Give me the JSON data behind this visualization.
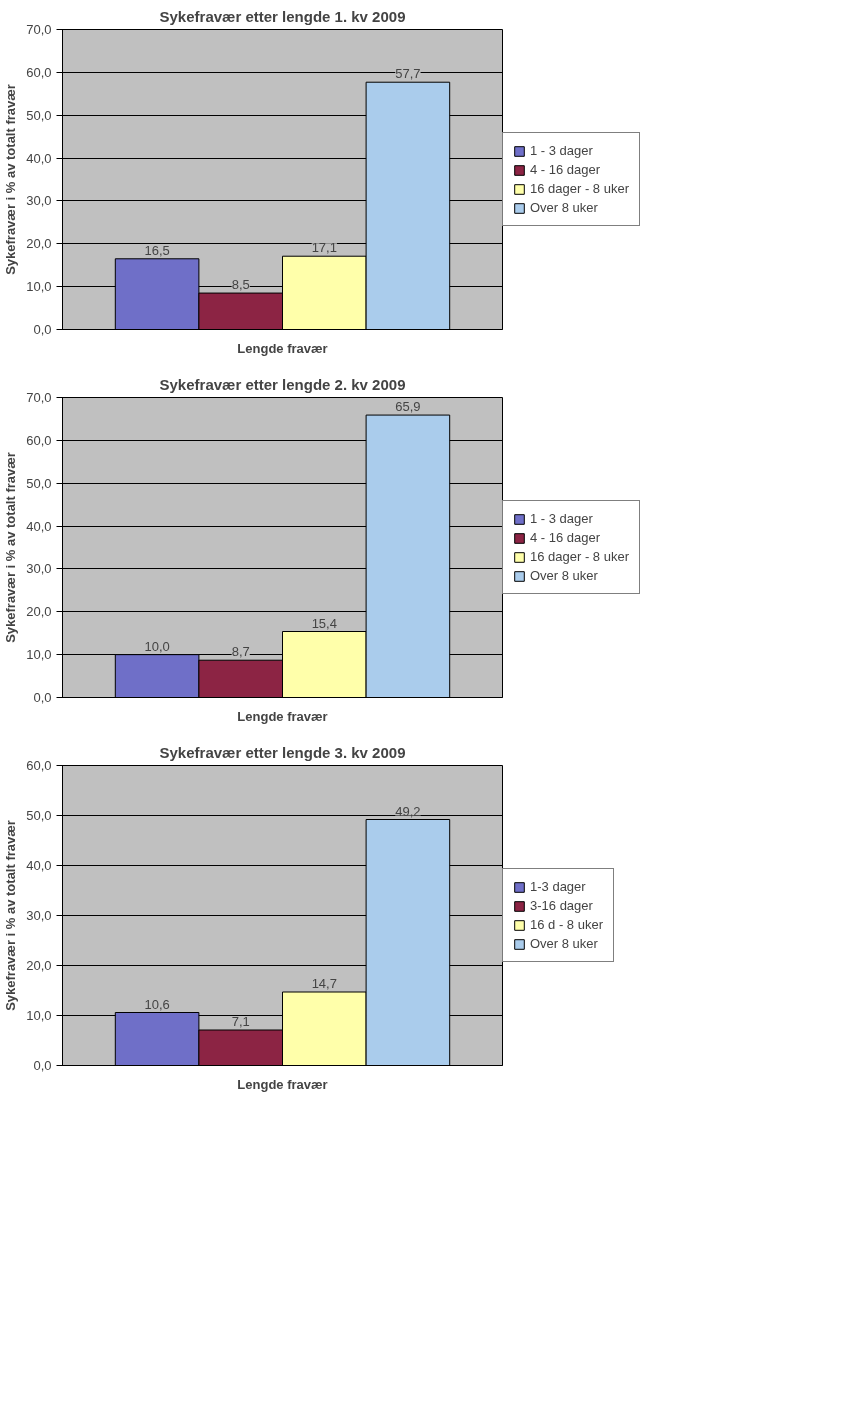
{
  "chart_data": [
    {
      "type": "bar",
      "title": "Sykefravær etter lengde 1. kv 2009",
      "xlabel": "Lengde fravær",
      "ylabel": "Sykefravær i % av totalt fravær",
      "categories": [
        null
      ],
      "ylim": [
        0,
        70
      ],
      "yticks": [
        {
          "value": 0,
          "label": "0,0"
        },
        {
          "value": 10,
          "label": "10,0"
        },
        {
          "value": 20,
          "label": "20,0"
        },
        {
          "value": 30,
          "label": "30,0"
        },
        {
          "value": 40,
          "label": "40,0"
        },
        {
          "value": 50,
          "label": "50,0"
        },
        {
          "value": 60,
          "label": "60,0"
        },
        {
          "value": 70,
          "label": "70,0"
        }
      ],
      "grid": "y",
      "legend": "right",
      "series": [
        {
          "name": "1 - 3 dager",
          "color": "#6f6fc8",
          "values": [
            16.5
          ],
          "value_labels": [
            "16,5"
          ]
        },
        {
          "name": "4 - 16 dager",
          "color": "#8c2444",
          "values": [
            8.5
          ],
          "value_labels": [
            "8,5"
          ]
        },
        {
          "name": "16 dager - 8 uker",
          "color": "#ffffaa",
          "values": [
            17.1
          ],
          "value_labels": [
            "17,1"
          ]
        },
        {
          "name": "Over 8 uker",
          "color": "#aaccec",
          "values": [
            57.7
          ],
          "value_labels": [
            "57,7"
          ]
        }
      ]
    },
    {
      "type": "bar",
      "title": "Sykefravær etter lengde 2. kv 2009",
      "xlabel": "Lengde fravær",
      "ylabel": "Sykefravær i % av totalt fravær",
      "categories": [
        null
      ],
      "ylim": [
        0,
        70
      ],
      "yticks": [
        {
          "value": 0,
          "label": "0,0"
        },
        {
          "value": 10,
          "label": "10,0"
        },
        {
          "value": 20,
          "label": "20,0"
        },
        {
          "value": 30,
          "label": "30,0"
        },
        {
          "value": 40,
          "label": "40,0"
        },
        {
          "value": 50,
          "label": "50,0"
        },
        {
          "value": 60,
          "label": "60,0"
        },
        {
          "value": 70,
          "label": "70,0"
        }
      ],
      "grid": "y",
      "legend": "right",
      "series": [
        {
          "name": "1 - 3 dager",
          "color": "#6f6fc8",
          "values": [
            10.0
          ],
          "value_labels": [
            "10,0"
          ]
        },
        {
          "name": "4 - 16 dager",
          "color": "#8c2444",
          "values": [
            8.7
          ],
          "value_labels": [
            "8,7"
          ]
        },
        {
          "name": "16 dager - 8 uker",
          "color": "#ffffaa",
          "values": [
            15.4
          ],
          "value_labels": [
            "15,4"
          ]
        },
        {
          "name": "Over 8 uker",
          "color": "#aaccec",
          "values": [
            65.9
          ],
          "value_labels": [
            "65,9"
          ]
        }
      ]
    },
    {
      "type": "bar",
      "title": "Sykefravær etter lengde 3. kv 2009",
      "xlabel": "Lengde fravær",
      "ylabel": "Sykefravær i % av totalt fravær",
      "categories": [
        null
      ],
      "ylim": [
        0,
        60
      ],
      "yticks": [
        {
          "value": 0,
          "label": "0,0"
        },
        {
          "value": 10,
          "label": "10,0"
        },
        {
          "value": 20,
          "label": "20,0"
        },
        {
          "value": 30,
          "label": "30,0"
        },
        {
          "value": 40,
          "label": "40,0"
        },
        {
          "value": 50,
          "label": "50,0"
        },
        {
          "value": 60,
          "label": "60,0"
        }
      ],
      "grid": "y",
      "legend": "right",
      "series": [
        {
          "name": "1-3 dager",
          "color": "#6f6fc8",
          "values": [
            10.6
          ],
          "value_labels": [
            "10,6"
          ]
        },
        {
          "name": "3-16 dager",
          "color": "#8c2444",
          "values": [
            7.1
          ],
          "value_labels": [
            "7,1"
          ]
        },
        {
          "name": "16 d - 8 uker",
          "color": "#ffffaa",
          "values": [
            14.7
          ],
          "value_labels": [
            "14,7"
          ]
        },
        {
          "name": "Over 8 uker",
          "color": "#aaccec",
          "values": [
            49.2
          ],
          "value_labels": [
            "49,2"
          ]
        }
      ]
    }
  ]
}
